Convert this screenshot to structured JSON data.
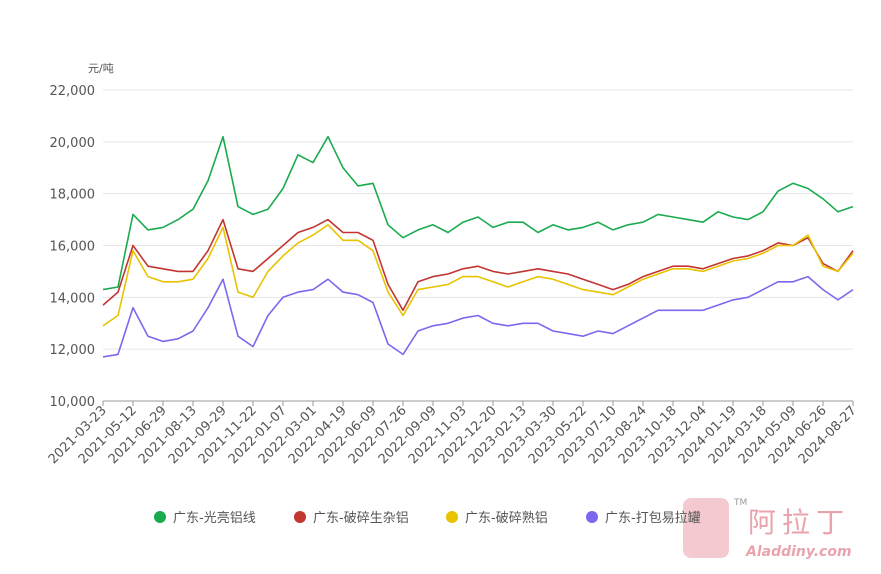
{
  "chart_data": {
    "type": "line",
    "y_unit": "元/吨",
    "categories": [
      "2021-03-23",
      null,
      "2021-05-12",
      null,
      "2021-06-29",
      null,
      "2021-08-13",
      null,
      "2021-09-29",
      null,
      "2021-11-22",
      null,
      "2022-01-07",
      null,
      "2022-03-01",
      null,
      "2022-04-19",
      null,
      "2022-06-09",
      null,
      "2022-07-26",
      null,
      "2022-09-09",
      null,
      "2022-11-03",
      null,
      "2022-12-20",
      null,
      "2023-02-13",
      null,
      "2023-03-30",
      null,
      "2023-05-22",
      null,
      "2023-07-10",
      null,
      "2023-08-24",
      null,
      "2023-10-18",
      null,
      "2023-12-04",
      null,
      "2024-01-19",
      null,
      "2024-03-18",
      null,
      "2024-05-09",
      null,
      "2024-06-26",
      null,
      "2024-08-27"
    ],
    "series": [
      {
        "name": "广东-光亮铝线",
        "color": "#1aab4f",
        "values": [
          14300,
          14400,
          17200,
          16600,
          16700,
          17000,
          17400,
          18500,
          20200,
          17500,
          17200,
          17400,
          18200,
          19500,
          19200,
          20200,
          19000,
          18300,
          18400,
          16800,
          16300,
          16600,
          16800,
          16500,
          16900,
          17100,
          16700,
          16900,
          16900,
          16500,
          16800,
          16600,
          16700,
          16900,
          16600,
          16800,
          16900,
          17200,
          17100,
          17000,
          16900,
          17300,
          17100,
          17000,
          17300,
          18100,
          18400,
          18200,
          17800,
          17300,
          17500
        ]
      },
      {
        "name": "广东-破碎生杂铝",
        "color": "#c23531",
        "values": [
          13700,
          14200,
          16000,
          15200,
          15100,
          15000,
          15000,
          15800,
          17000,
          15100,
          15000,
          15500,
          16000,
          16500,
          16700,
          17000,
          16500,
          16500,
          16200,
          14500,
          13500,
          14600,
          14800,
          14900,
          15100,
          15200,
          15000,
          14900,
          15000,
          15100,
          15000,
          14900,
          14700,
          14500,
          14300,
          14500,
          14800,
          15000,
          15200,
          15200,
          15100,
          15300,
          15500,
          15600,
          15800,
          16100,
          16000,
          16300,
          15300,
          15000,
          15800
        ]
      },
      {
        "name": "广东-破碎熟铝",
        "color": "#e8c300",
        "values": [
          12900,
          13300,
          15800,
          14800,
          14600,
          14600,
          14700,
          15500,
          16700,
          14200,
          14000,
          15000,
          15600,
          16100,
          16400,
          16800,
          16200,
          16200,
          15800,
          14200,
          13300,
          14300,
          14400,
          14500,
          14800,
          14800,
          14600,
          14400,
          14600,
          14800,
          14700,
          14500,
          14300,
          14200,
          14100,
          14400,
          14700,
          14900,
          15100,
          15100,
          15000,
          15200,
          15400,
          15500,
          15700,
          16000,
          16000,
          16400,
          15200,
          15000,
          15700
        ]
      },
      {
        "name": "广东-打包易拉罐",
        "color": "#7b68ee",
        "values": [
          11700,
          11800,
          13600,
          12500,
          12300,
          12400,
          12700,
          13600,
          14700,
          12500,
          12100,
          13300,
          14000,
          14200,
          14300,
          14700,
          14200,
          14100,
          13800,
          12200,
          11800,
          12700,
          12900,
          13000,
          13200,
          13300,
          13000,
          12900,
          13000,
          13000,
          12700,
          12600,
          12500,
          12700,
          12600,
          12900,
          13200,
          13500,
          13500,
          13500,
          13500,
          13700,
          13900,
          14000,
          14300,
          14600,
          14600,
          14800,
          14300,
          13900,
          14300
        ]
      }
    ],
    "ylim": [
      10000,
      22000
    ],
    "yticks": [
      {
        "value": 10000,
        "label": "10,000"
      },
      {
        "value": 12000,
        "label": "12,000"
      },
      {
        "value": 14000,
        "label": "14,000"
      },
      {
        "value": 16000,
        "label": "16,000"
      },
      {
        "value": 18000,
        "label": "18,000"
      },
      {
        "value": 20000,
        "label": "20,000"
      },
      {
        "value": 22000,
        "label": "22,000"
      }
    ],
    "grid": true,
    "legend": "bottom"
  },
  "watermark": {
    "name": "阿拉丁",
    "url": "Aladdiny.com",
    "tm": "TM"
  }
}
